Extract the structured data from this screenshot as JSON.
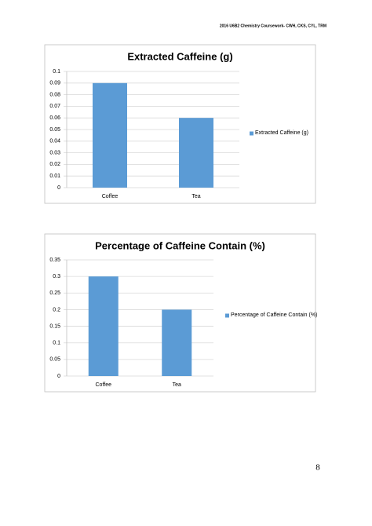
{
  "header": {
    "text": "2016 U6B2 Chemistry Coursework- CWH, CKS, CYL, TRM"
  },
  "page_number": "8",
  "chart_data": [
    {
      "type": "bar",
      "title": "Extracted Caffeine (g)",
      "categories": [
        "Coffee",
        "Tea"
      ],
      "series": [
        {
          "name": "Extracted Caffeine (g)",
          "color": "#5b9bd5",
          "values": [
            0.09,
            0.06
          ]
        }
      ],
      "ylim": [
        0,
        0.1
      ],
      "yticks": [
        0,
        0.01,
        0.02,
        0.03,
        0.04,
        0.05,
        0.06,
        0.07,
        0.08,
        0.09,
        0.1
      ],
      "grid": true,
      "legend": "right"
    },
    {
      "type": "bar",
      "title": "Percentage of Caffeine Contain (%)",
      "categories": [
        "Coffee",
        "Tea"
      ],
      "series": [
        {
          "name": "Percentage of Caffeine Contain (%)",
          "color": "#5b9bd5",
          "values": [
            0.3,
            0.2
          ]
        }
      ],
      "ylim": [
        0,
        0.35
      ],
      "yticks": [
        0,
        0.05,
        0.1,
        0.15,
        0.2,
        0.25,
        0.3,
        0.35
      ],
      "grid": true,
      "legend": "right"
    }
  ]
}
